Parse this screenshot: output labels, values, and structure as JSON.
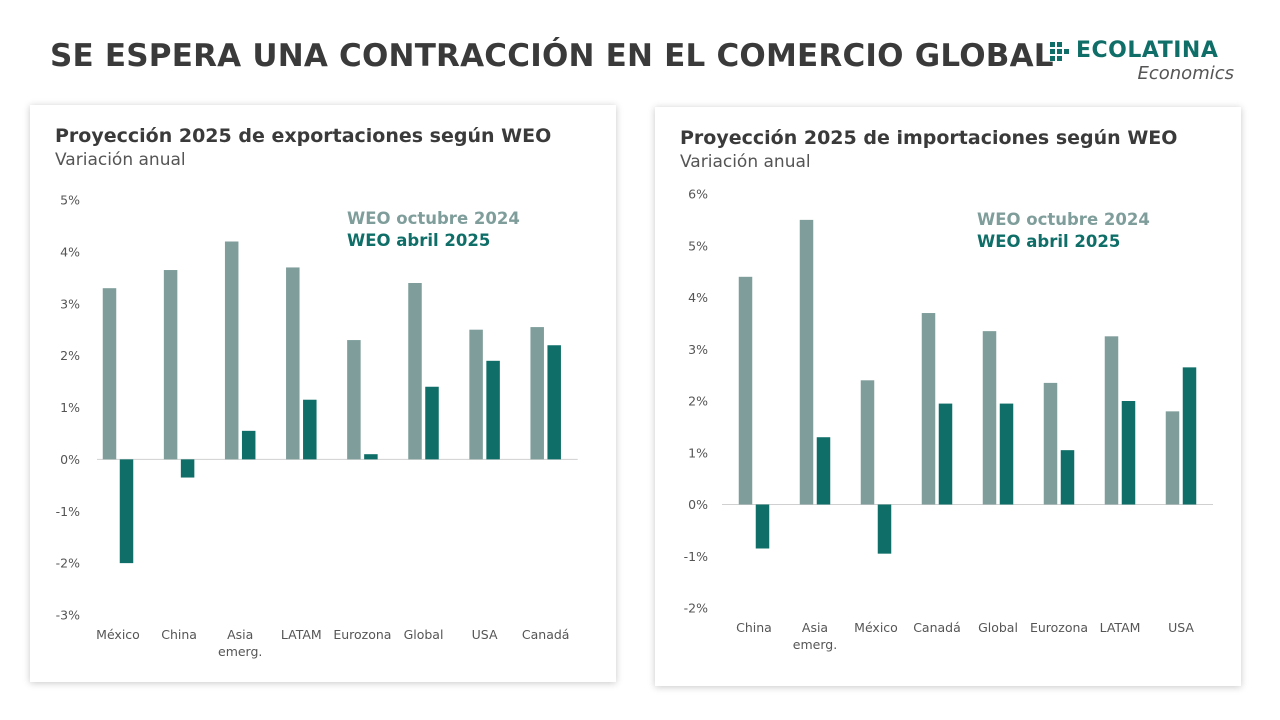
{
  "title": "SE ESPERA UNA CONTRACCIÓN EN EL COMERCIO GLOBAL",
  "logo": {
    "name": "ECOLATINA",
    "sub": "Economics"
  },
  "colors": {
    "octubre": "#7f9e9b",
    "abril": "#0f6f68",
    "title": "#3a3a3a"
  },
  "chart_data": [
    {
      "type": "bar",
      "title": "Proyección 2025 de exportaciones según WEO",
      "subtitle": "Variación anual",
      "categories": [
        "México",
        "China",
        "Asia emerg.",
        "LATAM",
        "Eurozona",
        "Global",
        "USA",
        "Canadá"
      ],
      "series": [
        {
          "name": "WEO octubre 2024",
          "values": [
            3.3,
            3.65,
            4.2,
            3.7,
            2.3,
            3.4,
            2.5,
            2.55
          ]
        },
        {
          "name": "WEO abril 2025",
          "values": [
            -2.0,
            -0.35,
            0.55,
            1.15,
            0.1,
            1.4,
            1.9,
            2.2
          ]
        }
      ],
      "ylim": [
        -3,
        5
      ],
      "yticks": [
        5,
        4,
        3,
        2,
        1,
        0,
        -1,
        -2,
        -3
      ],
      "ytick_labels": [
        "5%",
        "4%",
        "3%",
        "2%",
        "1%",
        "0%",
        "-1%",
        "-2%",
        "-3%"
      ],
      "legend_position": "top-right",
      "grid": false
    },
    {
      "type": "bar",
      "title": "Proyección 2025 de importaciones según WEO",
      "subtitle": "Variación anual",
      "categories": [
        "China",
        "Asia emerg.",
        "México",
        "Canadá",
        "Global",
        "Eurozona",
        "LATAM",
        "USA"
      ],
      "series": [
        {
          "name": "WEO octubre 2024",
          "values": [
            4.4,
            5.5,
            2.4,
            3.7,
            3.35,
            2.35,
            3.25,
            1.8
          ]
        },
        {
          "name": "WEO abril 2025",
          "values": [
            -0.85,
            1.3,
            -0.95,
            1.95,
            1.95,
            1.05,
            2.0,
            2.65
          ]
        }
      ],
      "ylim": [
        -2,
        6
      ],
      "yticks": [
        6,
        5,
        4,
        3,
        2,
        1,
        0,
        -1,
        -2
      ],
      "ytick_labels": [
        "6%",
        "5%",
        "4%",
        "3%",
        "2%",
        "1%",
        "0%",
        "-1%",
        "-2%"
      ],
      "legend_position": "top-right",
      "grid": false
    }
  ]
}
